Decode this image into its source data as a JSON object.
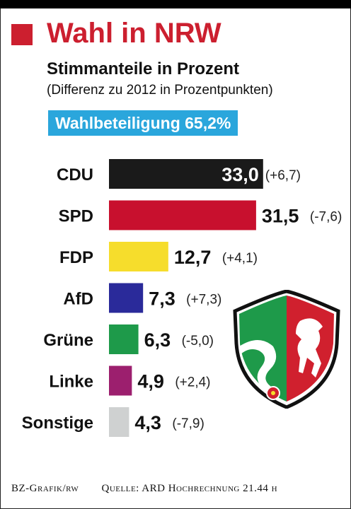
{
  "header": {
    "title": "Wahl in NRW",
    "subtitle": "Stimmanteile in Prozent",
    "note": "(Differenz zu 2012 in Prozentpunkten)",
    "turnout": "Wahlbeteiligung 65,2%"
  },
  "footer": {
    "credit": "BZ-Grafik/rw",
    "source": "Quelle: ARD Hochrechnung 21.44 h"
  },
  "colors": {
    "title": "#cc1f2f",
    "turnout_bg": "#2aa6dc"
  },
  "chart_data": {
    "type": "bar",
    "orientation": "horizontal",
    "categories": [
      "CDU",
      "SPD",
      "FDP",
      "AfD",
      "Grüne",
      "Linke",
      "Sonstige"
    ],
    "values": [
      33.0,
      31.5,
      12.7,
      7.3,
      6.3,
      4.9,
      4.3
    ],
    "value_labels": [
      "33,0",
      "31,5",
      "12,7",
      "7,3",
      "6,3",
      "4,9",
      "4,3"
    ],
    "changes": [
      "(+6,7)",
      "(-7,6)",
      "(+4,1)",
      "(+7,3)",
      "(-5,0)",
      "(+2,4)",
      "(-7,9)"
    ],
    "colors": [
      "#1a1a1a",
      "#c8102e",
      "#f6dd2c",
      "#2a2a9a",
      "#1e9a4a",
      "#9c1f6e",
      "#cfd1d1"
    ],
    "title": "Stimmanteile in Prozent"
  }
}
